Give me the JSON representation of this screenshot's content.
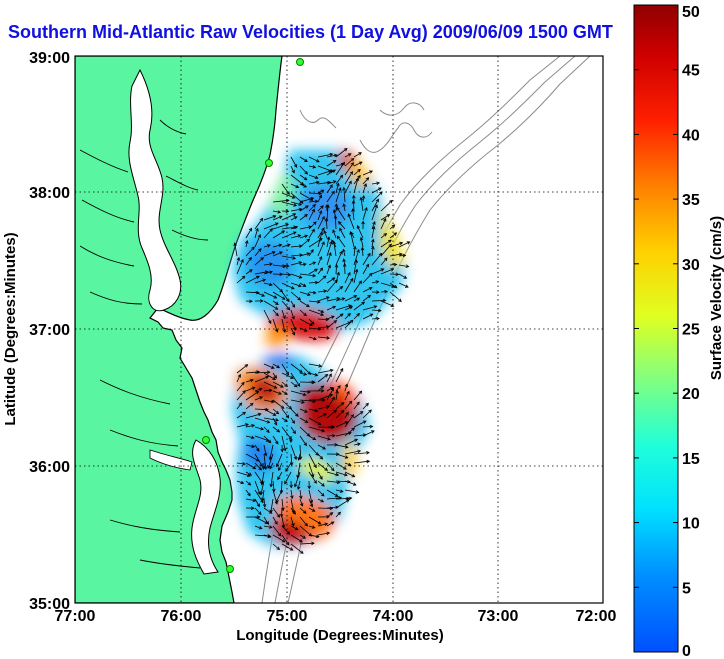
{
  "title": "Southern Mid-Atlantic Raw Velocities (1 Day Avg) 2009/06/09 1500 GMT",
  "x_axis": {
    "label": "Longitude (Degrees:Minutes)",
    "ticks": [
      "77:00",
      "76:00",
      "75:00",
      "74:00",
      "73:00",
      "72:00"
    ]
  },
  "y_axis": {
    "label": "Latitude (Degrees:Minutes)",
    "ticks": [
      "39:00",
      "38:00",
      "37:00",
      "36:00",
      "35:00"
    ]
  },
  "colorbar": {
    "label": "Surface Velocity (cm/s)",
    "ticks": [
      "0",
      "5",
      "10",
      "15",
      "20",
      "25",
      "30",
      "35",
      "40",
      "45",
      "50"
    ],
    "range": [
      0,
      50
    ],
    "colormap": "jet"
  },
  "map": {
    "lon_range": [
      -77,
      -72
    ],
    "lat_range": [
      35,
      39
    ],
    "land_color": "#5af5a0",
    "grid": "dotted",
    "features": [
      "coastline",
      "bathymetry-contours",
      "hf-radar-sites",
      "velocity-vectors",
      "surface-velocity-field"
    ]
  }
}
